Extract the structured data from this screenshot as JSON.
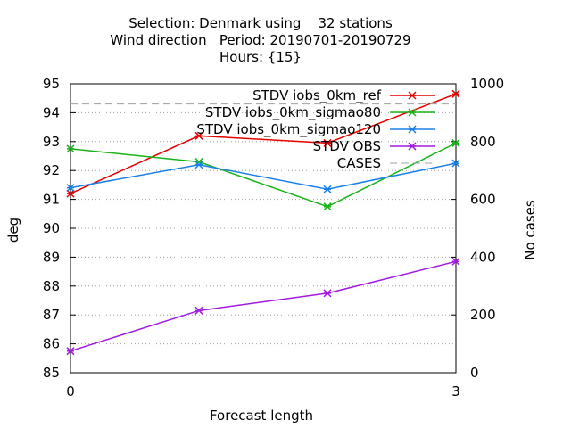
{
  "chart_data": {
    "type": "line",
    "title_lines": [
      "Selection: Denmark using    32 stations",
      "Wind direction   Period: 20190701-20190729",
      "Hours: {15}"
    ],
    "xlabel": "Forecast length",
    "ylabel": "deg",
    "y2label": "No cases",
    "xlim": [
      0,
      3
    ],
    "ylim": [
      85,
      95
    ],
    "y2lim": [
      0,
      1000
    ],
    "x_ticks": [
      0,
      3
    ],
    "y_ticks": [
      85,
      86,
      87,
      88,
      89,
      90,
      91,
      92,
      93,
      94,
      95
    ],
    "y2_ticks": [
      0,
      200,
      400,
      600,
      800,
      1000
    ],
    "grid": true,
    "legend_position": "top-right",
    "series": [
      {
        "name": "STDV iobs_0km_ref",
        "color": "#e60000",
        "axis": "y",
        "x": [
          0,
          1,
          2,
          3
        ],
        "values": [
          91.2,
          93.2,
          92.95,
          94.65
        ]
      },
      {
        "name": "STDV iobs_0km_sigmao80",
        "color": "#1ab31a",
        "axis": "y",
        "x": [
          0,
          1,
          2,
          3
        ],
        "values": [
          92.75,
          92.3,
          90.75,
          92.95
        ]
      },
      {
        "name": "STDV iobs_0km_sigmao120",
        "color": "#1a80e6",
        "axis": "y",
        "x": [
          0,
          1,
          2,
          3
        ],
        "values": [
          91.4,
          92.2,
          91.35,
          92.25
        ]
      },
      {
        "name": "STDV OBS",
        "color": "#a31ae0",
        "axis": "y",
        "x": [
          0,
          1,
          2,
          3
        ],
        "values": [
          85.75,
          87.15,
          87.75,
          88.85
        ]
      },
      {
        "name": "CASES",
        "color": "#a0a0a0",
        "axis": "y2",
        "dashed": true,
        "x": [
          0,
          1,
          2,
          3
        ],
        "values": [
          930,
          930,
          930,
          930
        ]
      }
    ]
  }
}
